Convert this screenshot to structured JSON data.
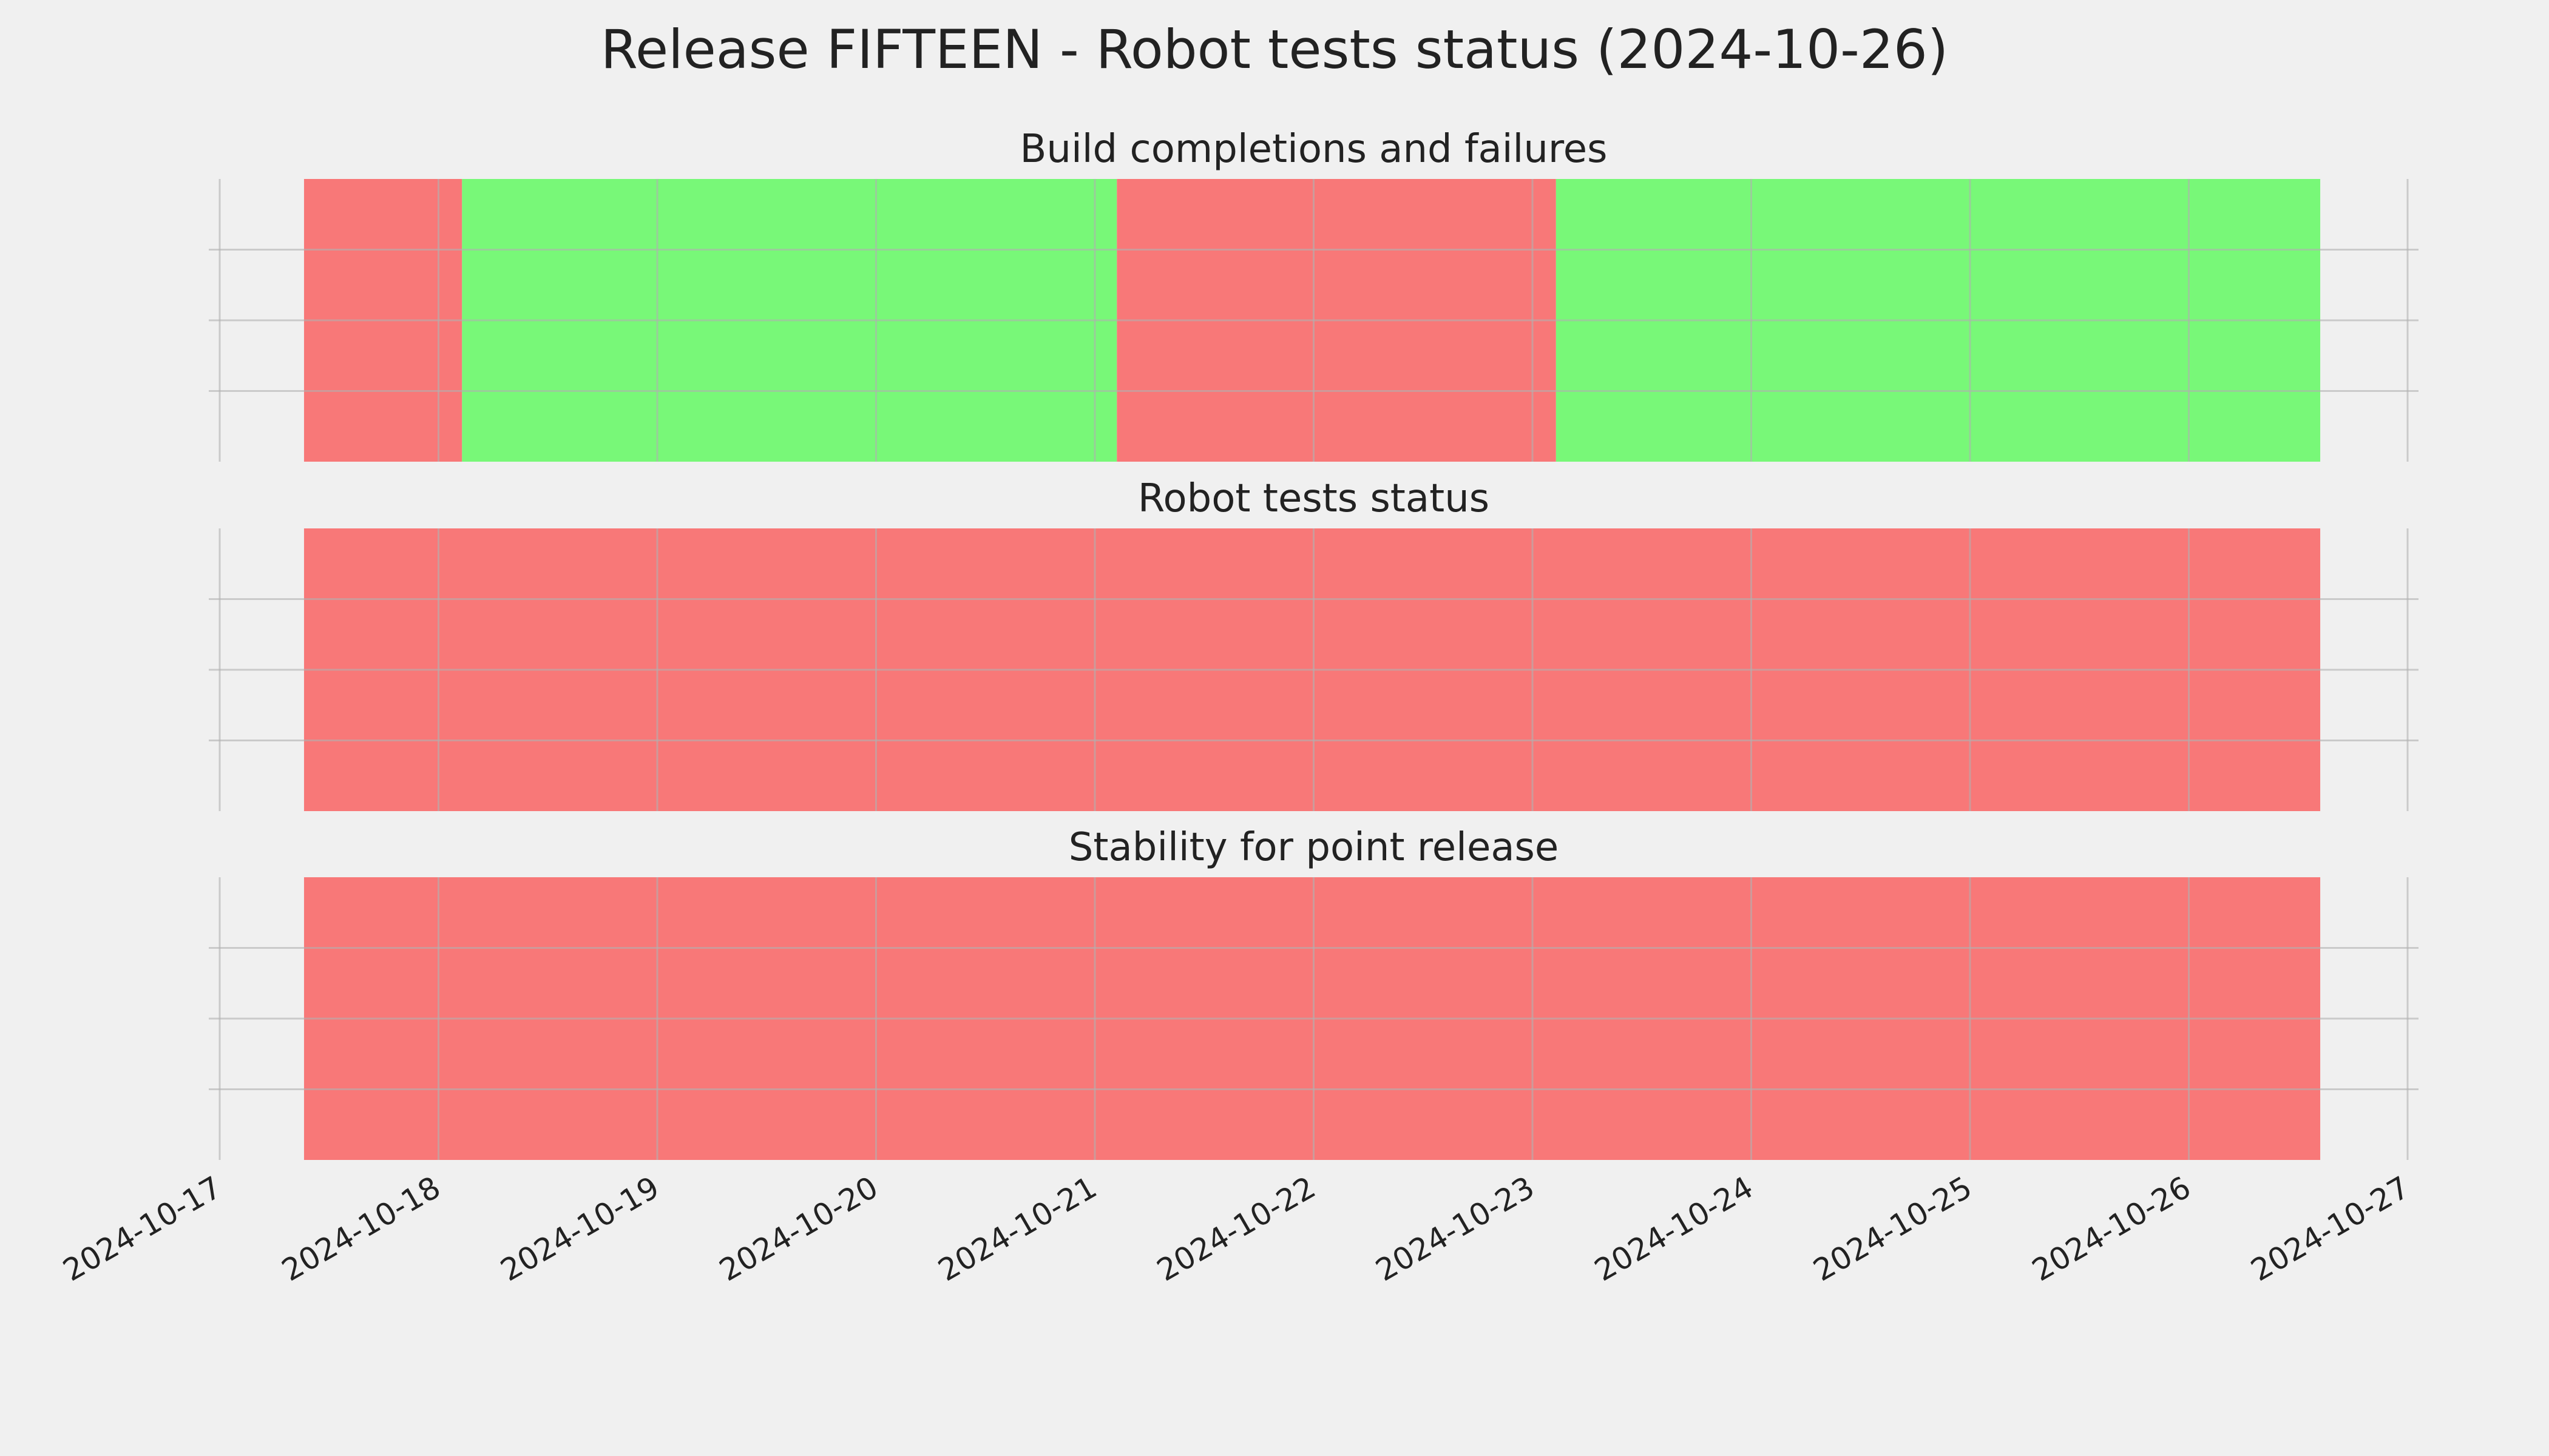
{
  "title": "Release FIFTEEN - Robot tests status (2024-10-26)",
  "chart_data": [
    {
      "type": "span",
      "title": "Build completions and failures",
      "xlim": [
        "2024-10-17",
        "2024-10-27"
      ],
      "xticks": [
        "2024-10-17",
        "2024-10-18",
        "2024-10-19",
        "2024-10-20",
        "2024-10-21",
        "2024-10-22",
        "2024-10-23",
        "2024-10-24",
        "2024-10-25",
        "2024-10-26",
        "2024-10-27"
      ],
      "ylim": [
        0,
        1
      ],
      "yticks": [
        0.25,
        0.5,
        0.75
      ],
      "grid": true,
      "spans": [
        {
          "start": "2024-10-17T09:15",
          "end": "2024-10-18T02:35",
          "color": "#f87878"
        },
        {
          "start": "2024-10-18T02:35",
          "end": "2024-10-21T02:25",
          "color": "#78f878"
        },
        {
          "start": "2024-10-21T02:25",
          "end": "2024-10-23T02:35",
          "color": "#f87878"
        },
        {
          "start": "2024-10-23T02:35",
          "end": "2024-10-26T14:25",
          "color": "#78f878"
        }
      ]
    },
    {
      "type": "span",
      "title": "Robot tests status",
      "xlim": [
        "2024-10-17",
        "2024-10-27"
      ],
      "xticks": [
        "2024-10-17",
        "2024-10-18",
        "2024-10-19",
        "2024-10-20",
        "2024-10-21",
        "2024-10-22",
        "2024-10-23",
        "2024-10-24",
        "2024-10-25",
        "2024-10-26",
        "2024-10-27"
      ],
      "ylim": [
        0,
        1
      ],
      "yticks": [
        0.25,
        0.5,
        0.75
      ],
      "grid": true,
      "spans": [
        {
          "start": "2024-10-17T09:15",
          "end": "2024-10-26T14:25",
          "color": "#f87878"
        }
      ]
    },
    {
      "type": "span",
      "title": "Stability for point release",
      "xlim": [
        "2024-10-17",
        "2024-10-27"
      ],
      "xticks": [
        "2024-10-17",
        "2024-10-18",
        "2024-10-19",
        "2024-10-20",
        "2024-10-21",
        "2024-10-22",
        "2024-10-23",
        "2024-10-24",
        "2024-10-25",
        "2024-10-26",
        "2024-10-27"
      ],
      "ylim": [
        0,
        1
      ],
      "yticks": [
        0.25,
        0.5,
        0.75
      ],
      "grid": true,
      "spans": [
        {
          "start": "2024-10-17T09:15",
          "end": "2024-10-26T14:25",
          "color": "#f87878"
        }
      ]
    }
  ]
}
